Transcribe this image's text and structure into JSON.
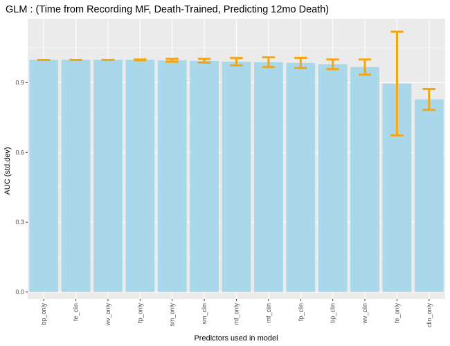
{
  "chart_data": {
    "type": "bar",
    "title": "GLM : (Time from Recording MF, Death-Trained, Predicting 12mo Death)",
    "xlabel": "Predictors used in model",
    "ylabel": "AUC (std.dev)",
    "categories": [
      "bp_only",
      "fe_clin",
      "wv_only",
      "fp_only",
      "sm_only",
      "sm_clin",
      "mf_only",
      "mf_clin",
      "fp_clin",
      "bp_clin",
      "wv_clin",
      "fe_only",
      "clin_only"
    ],
    "values": [
      0.998,
      0.998,
      0.998,
      0.998,
      0.996,
      0.994,
      0.99,
      0.988,
      0.985,
      0.979,
      0.967,
      0.896,
      0.828
    ],
    "error": [
      0.0,
      0.0,
      0.0,
      0.002,
      0.006,
      0.008,
      0.016,
      0.021,
      0.022,
      0.021,
      0.033,
      0.223,
      0.045
    ],
    "yticks": [
      0.0,
      0.3,
      0.6,
      0.9
    ],
    "ytick_labels": [
      "0.0",
      "0.3",
      "0.6",
      "0.9"
    ],
    "ylim": [
      -0.03,
      1.175
    ],
    "grid": true,
    "colors": {
      "bar": "#a8d8ea",
      "errorbar": "#f6a50f",
      "panel": "#ebebeb",
      "grid": "#ffffff"
    }
  }
}
